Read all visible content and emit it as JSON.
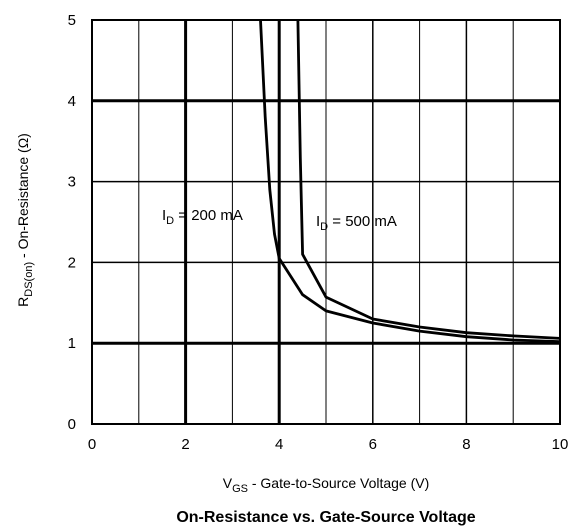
{
  "chart_data": {
    "type": "line",
    "title": "On-Resistance vs. Gate-Source Voltage",
    "xlabel": {
      "main": "V",
      "sub": "GS",
      "rest": " - Gate-to-Source Voltage (V)"
    },
    "ylabel": {
      "main": "R",
      "sub": "DS(on)",
      "rest": " - On-Resistance (Ω)"
    },
    "xlim": [
      0,
      10
    ],
    "ylim": [
      0,
      5
    ],
    "xticks": [
      0,
      2,
      4,
      6,
      8,
      10
    ],
    "yticks": [
      0,
      1,
      2,
      3,
      4,
      5
    ],
    "grid": true,
    "series": [
      {
        "label": {
          "main": "I",
          "sub": "D",
          "rest": " = 200 mA"
        },
        "x": [
          3.6,
          3.7,
          3.8,
          3.9,
          4.0,
          4.5,
          5.0,
          6.0,
          7.0,
          8.0,
          9.0,
          10.0
        ],
        "y": [
          5.0,
          3.8,
          2.9,
          2.35,
          2.05,
          1.6,
          1.4,
          1.25,
          1.15,
          1.08,
          1.04,
          1.02
        ]
      },
      {
        "label": {
          "main": "I",
          "sub": "D",
          "rest": " = 500 mA"
        },
        "x": [
          4.4,
          4.45,
          4.5,
          5.0,
          6.0,
          7.0,
          8.0,
          9.0,
          10.0
        ],
        "y": [
          5.0,
          3.3,
          2.1,
          1.57,
          1.3,
          1.2,
          1.13,
          1.09,
          1.06
        ]
      }
    ]
  }
}
